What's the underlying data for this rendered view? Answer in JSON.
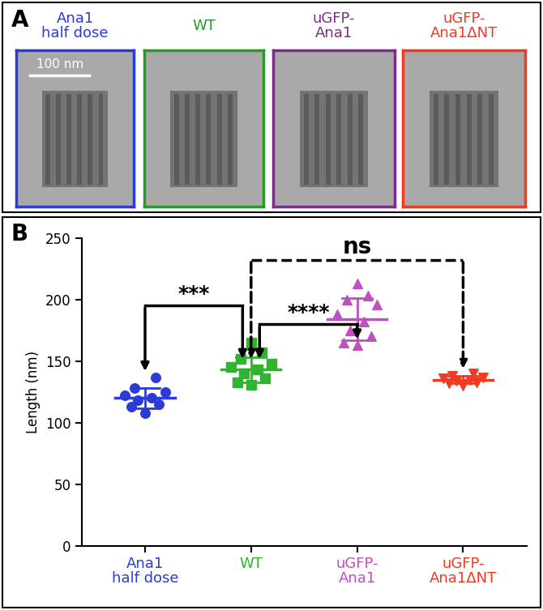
{
  "panel_labels": [
    "A",
    "B"
  ],
  "panel_a": {
    "images": [
      {
        "label": "Ana1\nhalf dose",
        "color": "#2b3bd6"
      },
      {
        "label": "WT",
        "color": "#2a9a2a"
      },
      {
        "label": "uGFP-\nAna1",
        "color": "#7b2d8b"
      },
      {
        "label": "uGFP-\nAna1ΔNT",
        "color": "#f03a23"
      }
    ],
    "scale_bar": "100 nm"
  },
  "chart_data": {
    "type": "scatter",
    "categories": [
      "Ana1\nhalf dose",
      "WT",
      "uGFP-\nAna1",
      "uGFP-\nAna1ΔNT"
    ],
    "y_label": "Length (nm)",
    "ylim": [
      0,
      250
    ],
    "yticks": [
      0,
      50,
      100,
      150,
      200,
      250
    ],
    "groups": [
      {
        "color": "#2b3bd6",
        "marker": "circle",
        "values": [
          108,
          113,
          115,
          118,
          120,
          122,
          125,
          128,
          137
        ],
        "mean": 120,
        "sd": 8
      },
      {
        "color": "#2db52d",
        "marker": "square",
        "values": [
          131,
          133,
          136,
          140,
          143,
          145,
          148,
          152,
          157,
          165
        ],
        "mean": 143,
        "sd": 10
      },
      {
        "color": "#c04fc0",
        "marker": "triangle_up",
        "values": [
          163,
          165,
          170,
          175,
          182,
          188,
          196,
          200,
          203,
          213
        ],
        "mean": 184,
        "sd": 17
      },
      {
        "color": "#f03a23",
        "marker": "triangle_down",
        "values": [
          130,
          132,
          133,
          134,
          135,
          136,
          137,
          138,
          140
        ],
        "mean": 135,
        "sd": 3
      }
    ],
    "comparisons": [
      {
        "pair": [
          0,
          1
        ],
        "label": "***",
        "y": 195,
        "ends": [
          140,
          150
        ],
        "line_style": "solid"
      },
      {
        "pair": [
          1,
          3
        ],
        "label": "ns",
        "y": 232,
        "ends": [
          150,
          142
        ],
        "line_style": "dashed"
      },
      {
        "pair": [
          1,
          2
        ],
        "label": "****",
        "y": 180,
        "ends": [
          150,
          166
        ],
        "line_style": "solid"
      }
    ]
  }
}
